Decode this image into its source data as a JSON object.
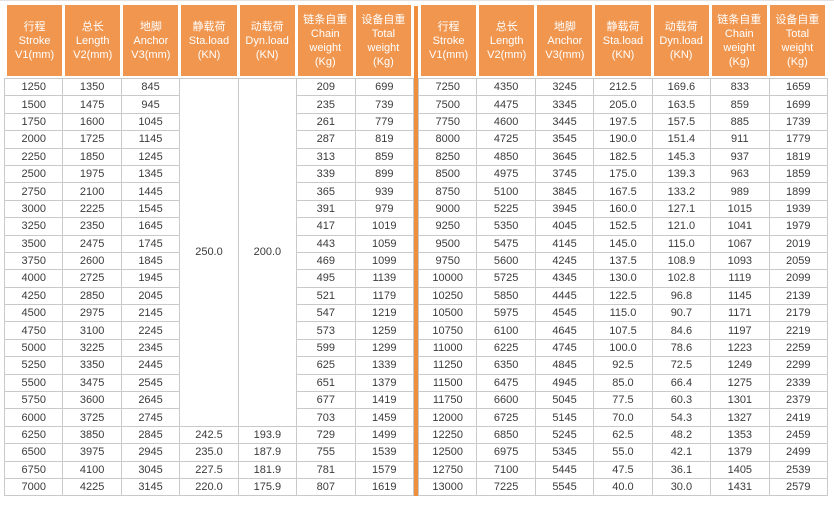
{
  "colors": {
    "header_bg": "#F0964F",
    "header_text": "#FFFFFF",
    "divider": "#EE8F3E",
    "grid_border": "#C9C9C9",
    "cell_text": "#3B3B3B",
    "page_bg": "#FFFFFF"
  },
  "table": {
    "columns": [
      {
        "key": "stroke",
        "lines": [
          "行程",
          "Stroke",
          "V1(mm)"
        ]
      },
      {
        "key": "length",
        "lines": [
          "总长",
          "Length",
          "V2(mm)"
        ]
      },
      {
        "key": "anchor",
        "lines": [
          "地脚",
          "Anchor",
          "V3(mm)"
        ]
      },
      {
        "key": "sta-load",
        "lines": [
          "静载荷",
          "Sta.load",
          "(KN)"
        ]
      },
      {
        "key": "dyn-load",
        "lines": [
          "动载荷",
          "Dyn.load",
          "(KN)"
        ]
      },
      {
        "key": "chain-weight",
        "lines": [
          "链条自重",
          "Chain",
          "weight",
          "(Kg)"
        ]
      },
      {
        "key": "total-weight",
        "lines": [
          "设备自重",
          "Total",
          "weight",
          "(Kg)"
        ]
      }
    ],
    "left": {
      "merge": {
        "cols": [
          3,
          4
        ],
        "rowspan": 20
      },
      "rows": [
        [
          "1250",
          "1350",
          "845",
          "250.0",
          "200.0",
          "209",
          "699"
        ],
        [
          "1500",
          "1475",
          "945",
          null,
          null,
          "235",
          "739"
        ],
        [
          "1750",
          "1600",
          "1045",
          null,
          null,
          "261",
          "779"
        ],
        [
          "2000",
          "1725",
          "1145",
          null,
          null,
          "287",
          "819"
        ],
        [
          "2250",
          "1850",
          "1245",
          null,
          null,
          "313",
          "859"
        ],
        [
          "2500",
          "1975",
          "1345",
          null,
          null,
          "339",
          "899"
        ],
        [
          "2750",
          "2100",
          "1445",
          null,
          null,
          "365",
          "939"
        ],
        [
          "3000",
          "2225",
          "1545",
          null,
          null,
          "391",
          "979"
        ],
        [
          "3250",
          "2350",
          "1645",
          null,
          null,
          "417",
          "1019"
        ],
        [
          "3500",
          "2475",
          "1745",
          null,
          null,
          "443",
          "1059"
        ],
        [
          "3750",
          "2600",
          "1845",
          null,
          null,
          "469",
          "1099"
        ],
        [
          "4000",
          "2725",
          "1945",
          null,
          null,
          "495",
          "1139"
        ],
        [
          "4250",
          "2850",
          "2045",
          null,
          null,
          "521",
          "1179"
        ],
        [
          "4500",
          "2975",
          "2145",
          null,
          null,
          "547",
          "1219"
        ],
        [
          "4750",
          "3100",
          "2245",
          null,
          null,
          "573",
          "1259"
        ],
        [
          "5000",
          "3225",
          "2345",
          null,
          null,
          "599",
          "1299"
        ],
        [
          "5250",
          "3350",
          "2445",
          null,
          null,
          "625",
          "1339"
        ],
        [
          "5500",
          "3475",
          "2545",
          null,
          null,
          "651",
          "1379"
        ],
        [
          "5750",
          "3600",
          "2645",
          null,
          null,
          "677",
          "1419"
        ],
        [
          "6000",
          "3725",
          "2745",
          null,
          null,
          "703",
          "1459"
        ],
        [
          "6250",
          "3850",
          "2845",
          "242.5",
          "193.9",
          "729",
          "1499"
        ],
        [
          "6500",
          "3975",
          "2945",
          "235.0",
          "187.9",
          "755",
          "1539"
        ],
        [
          "6750",
          "4100",
          "3045",
          "227.5",
          "181.9",
          "781",
          "1579"
        ],
        [
          "7000",
          "4225",
          "3145",
          "220.0",
          "175.9",
          "807",
          "1619"
        ]
      ]
    },
    "right": {
      "merge": null,
      "rows": [
        [
          "7250",
          "4350",
          "3245",
          "212.5",
          "169.6",
          "833",
          "1659"
        ],
        [
          "7500",
          "4475",
          "3345",
          "205.0",
          "163.5",
          "859",
          "1699"
        ],
        [
          "7750",
          "4600",
          "3445",
          "197.5",
          "157.5",
          "885",
          "1739"
        ],
        [
          "8000",
          "4725",
          "3545",
          "190.0",
          "151.4",
          "911",
          "1779"
        ],
        [
          "8250",
          "4850",
          "3645",
          "182.5",
          "145.3",
          "937",
          "1819"
        ],
        [
          "8500",
          "4975",
          "3745",
          "175.0",
          "139.3",
          "963",
          "1859"
        ],
        [
          "8750",
          "5100",
          "3845",
          "167.5",
          "133.2",
          "989",
          "1899"
        ],
        [
          "9000",
          "5225",
          "3945",
          "160.0",
          "127.1",
          "1015",
          "1939"
        ],
        [
          "9250",
          "5350",
          "4045",
          "152.5",
          "121.0",
          "1041",
          "1979"
        ],
        [
          "9500",
          "5475",
          "4145",
          "145.0",
          "115.0",
          "1067",
          "2019"
        ],
        [
          "9750",
          "5600",
          "4245",
          "137.5",
          "108.9",
          "1093",
          "2059"
        ],
        [
          "10000",
          "5725",
          "4345",
          "130.0",
          "102.8",
          "1119",
          "2099"
        ],
        [
          "10250",
          "5850",
          "4445",
          "122.5",
          "96.8",
          "1145",
          "2139"
        ],
        [
          "10500",
          "5975",
          "4545",
          "115.0",
          "90.7",
          "1171",
          "2179"
        ],
        [
          "10750",
          "6100",
          "4645",
          "107.5",
          "84.6",
          "1197",
          "2219"
        ],
        [
          "11000",
          "6225",
          "4745",
          "100.0",
          "78.6",
          "1223",
          "2259"
        ],
        [
          "11250",
          "6350",
          "4845",
          "92.5",
          "72.5",
          "1249",
          "2299"
        ],
        [
          "11500",
          "6475",
          "4945",
          "85.0",
          "66.4",
          "1275",
          "2339"
        ],
        [
          "11750",
          "6600",
          "5045",
          "77.5",
          "60.3",
          "1301",
          "2379"
        ],
        [
          "12000",
          "6725",
          "5145",
          "70.0",
          "54.3",
          "1327",
          "2419"
        ],
        [
          "12250",
          "6850",
          "5245",
          "62.5",
          "48.2",
          "1353",
          "2459"
        ],
        [
          "12500",
          "6975",
          "5345",
          "55.0",
          "42.1",
          "1379",
          "2499"
        ],
        [
          "12750",
          "7100",
          "5445",
          "47.5",
          "36.1",
          "1405",
          "2539"
        ],
        [
          "13000",
          "7225",
          "5545",
          "40.0",
          "30.0",
          "1431",
          "2579"
        ]
      ]
    }
  }
}
